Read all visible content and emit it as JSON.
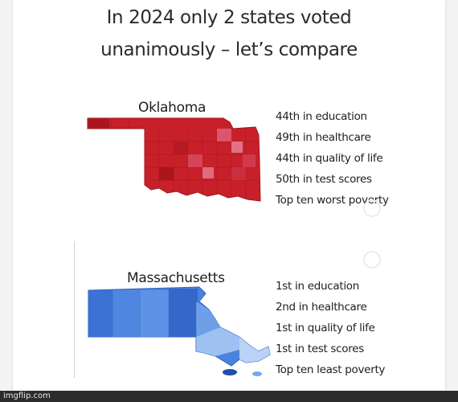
{
  "headline": {
    "line1": "In 2024 only 2 states voted",
    "line2": "unanimously – let’s compare"
  },
  "oklahoma": {
    "name": "Oklahoma",
    "facts": [
      "44th in education",
      "49th in healthcare",
      "44th in quality of life",
      "50th in test scores",
      "Top ten worst poverty"
    ],
    "map_color": "#c8202a"
  },
  "massachusetts": {
    "name": "Massachusetts",
    "facts": [
      "1st in education",
      "2nd in healthcare",
      "1st in quality of life",
      "1st in test scores",
      "Top ten least poverty"
    ],
    "map_color": "#4a83df"
  },
  "footer": {
    "watermark": "imgflip.com"
  }
}
